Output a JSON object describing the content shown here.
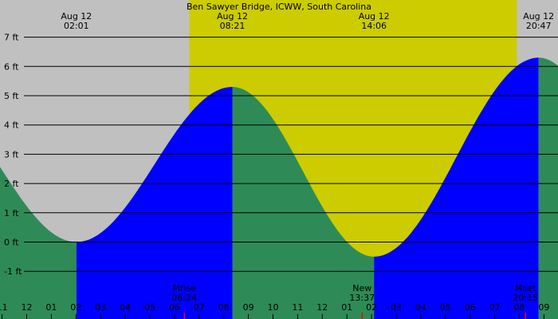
{
  "chart_data": {
    "type": "area",
    "title": "Ben Sawyer Bridge, ICWW, South Carolina",
    "y_unit": "ft",
    "ylim": [
      -1.9,
      7.4
    ],
    "y_ticks": [
      {
        "value": 7,
        "label": "7 ft"
      },
      {
        "value": 6,
        "label": "6 ft"
      },
      {
        "value": 5,
        "label": "5 ft"
      },
      {
        "value": 4,
        "label": "4 ft"
      },
      {
        "value": 3,
        "label": "3 ft"
      },
      {
        "value": 2,
        "label": "2 ft"
      },
      {
        "value": 1,
        "label": "1 ft"
      },
      {
        "value": 0,
        "label": "0 ft"
      },
      {
        "value": -1,
        "label": "-1 ft"
      }
    ],
    "x_range_hours": [
      -1.0,
      21.6
    ],
    "x_ticks": [
      {
        "hour": -1,
        "label": "11"
      },
      {
        "hour": 0,
        "label": "12"
      },
      {
        "hour": 1,
        "label": "01"
      },
      {
        "hour": 2,
        "label": "02"
      },
      {
        "hour": 3,
        "label": "03"
      },
      {
        "hour": 4,
        "label": "04"
      },
      {
        "hour": 5,
        "label": "05"
      },
      {
        "hour": 6,
        "label": "06"
      },
      {
        "hour": 7,
        "label": "07"
      },
      {
        "hour": 8,
        "label": "08"
      },
      {
        "hour": 9,
        "label": "09"
      },
      {
        "hour": 10,
        "label": "10"
      },
      {
        "hour": 11,
        "label": "11"
      },
      {
        "hour": 12,
        "label": "12"
      },
      {
        "hour": 13,
        "label": "01"
      },
      {
        "hour": 14,
        "label": "02"
      },
      {
        "hour": 15,
        "label": "03"
      },
      {
        "hour": 16,
        "label": "04"
      },
      {
        "hour": 17,
        "label": "05"
      },
      {
        "hour": 18,
        "label": "06"
      },
      {
        "hour": 19,
        "label": "07"
      },
      {
        "hour": 20,
        "label": "08"
      },
      {
        "hour": 21,
        "label": "09"
      }
    ],
    "tide_events": [
      {
        "date": "Aug 12",
        "time": "02:01",
        "hour": 2.017,
        "height_ft": 0.0,
        "type": "low"
      },
      {
        "date": "Aug 12",
        "time": "08:21",
        "hour": 8.35,
        "height_ft": 5.3,
        "type": "high"
      },
      {
        "date": "Aug 12",
        "time": "14:06",
        "hour": 14.1,
        "height_ft": -0.5,
        "type": "low"
      },
      {
        "date": "Aug 12",
        "time": "20:47",
        "hour": 20.783,
        "height_ft": 6.3,
        "type": "high"
      }
    ],
    "daylight": {
      "start_hour": 6.6,
      "end_hour": 19.9
    },
    "moon_events": [
      {
        "label": "Mrise",
        "time": "06:24",
        "hour": 6.4
      },
      {
        "label": "New",
        "time": "13:37",
        "hour": 13.617
      },
      {
        "label": "Mset",
        "time": "20:15",
        "hour": 20.25
      }
    ],
    "grid": true,
    "colors": {
      "night_bg": "#c0c0c0",
      "day_bg": "#cccc00",
      "falling_tide": "#2e8b57",
      "rising_tide": "#0000ff",
      "gridline": "#000000",
      "moon_tick": "#ff0000"
    }
  }
}
